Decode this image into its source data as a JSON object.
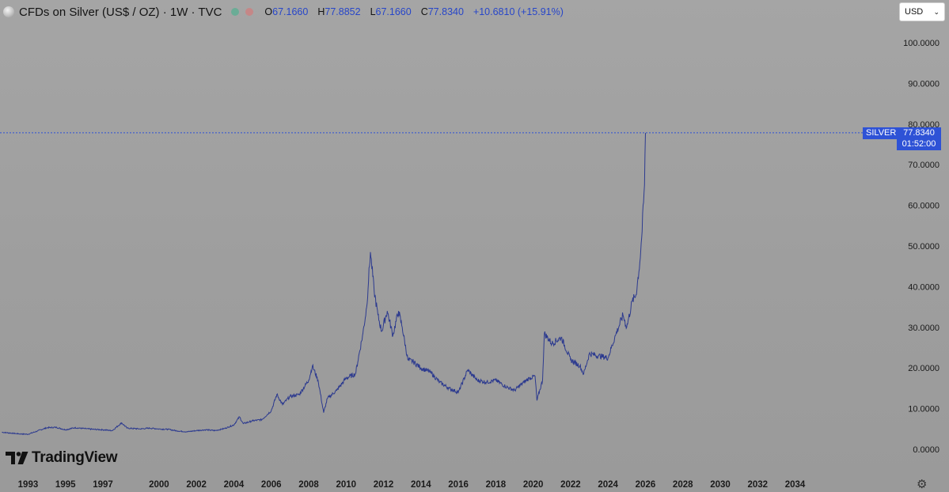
{
  "header": {
    "title": "CFDs on Silver (US$ / OZ) · 1W · TVC",
    "open_key": "O",
    "open": "67.1660",
    "high_key": "H",
    "high": "77.8852",
    "low_key": "L",
    "low": "67.1660",
    "close_key": "C",
    "close": "77.8340",
    "change": "+10.6810 (+15.91%)"
  },
  "currency": {
    "selected": "USD"
  },
  "price_label": {
    "symbol": "SILVER",
    "last": "77.8340",
    "countdown": "01:52:00"
  },
  "brand": "TradingView",
  "colors": {
    "line": "#2c3a8f",
    "accent": "#2e52d6",
    "background": "#a0a0a0"
  },
  "chart_data": {
    "type": "line",
    "title": "CFDs on Silver (US$ / OZ) · 1W · TVC",
    "xlabel": "",
    "ylabel": "",
    "ylim": [
      0,
      100
    ],
    "xlim": [
      1991.5,
      2035.5
    ],
    "grid": false,
    "y_ticks": [
      "0.0000",
      "10.0000",
      "20.0000",
      "30.0000",
      "40.0000",
      "50.0000",
      "60.0000",
      "70.0000",
      "80.0000",
      "90.0000",
      "100.0000"
    ],
    "x_ticks": [
      "1993",
      "1995",
      "1997",
      "2000",
      "2002",
      "2004",
      "2006",
      "2008",
      "2010",
      "2012",
      "2014",
      "2016",
      "2018",
      "2020",
      "2022",
      "2024",
      "2026",
      "2028",
      "2030",
      "2032",
      "2034"
    ],
    "series": [
      {
        "name": "SILVER",
        "x": [
          1991.6,
          1992.5,
          1993.0,
          1993.5,
          1994.0,
          1994.5,
          1995.0,
          1995.5,
          1996.0,
          1996.5,
          1997.0,
          1997.5,
          1998.0,
          1998.3,
          1999.0,
          1999.5,
          2000.0,
          2000.5,
          2001.0,
          2001.5,
          2002.0,
          2002.5,
          2003.0,
          2003.5,
          2004.0,
          2004.3,
          2004.5,
          2005.0,
          2005.5,
          2006.0,
          2006.3,
          2006.6,
          2007.0,
          2007.5,
          2008.0,
          2008.2,
          2008.5,
          2008.8,
          2009.0,
          2009.5,
          2010.0,
          2010.5,
          2010.9,
          2011.1,
          2011.3,
          2011.5,
          2011.7,
          2011.9,
          2012.2,
          2012.5,
          2012.8,
          2013.0,
          2013.3,
          2013.6,
          2014.0,
          2014.5,
          2015.0,
          2015.5,
          2016.0,
          2016.5,
          2017.0,
          2017.5,
          2018.0,
          2018.5,
          2019.0,
          2019.5,
          2019.8,
          2020.1,
          2020.2,
          2020.5,
          2020.6,
          2021.0,
          2021.5,
          2022.0,
          2022.5,
          2022.7,
          2023.0,
          2023.5,
          2024.0,
          2024.4,
          2024.8,
          2025.0,
          2025.3,
          2025.5,
          2025.7,
          2025.8,
          2025.95,
          2026.0
        ],
        "values": [
          4.2,
          3.8,
          3.7,
          4.5,
          5.3,
          5.4,
          4.8,
          5.3,
          5.1,
          4.9,
          4.8,
          4.6,
          6.5,
          5.2,
          5.0,
          5.2,
          5.0,
          4.9,
          4.5,
          4.3,
          4.6,
          4.8,
          4.6,
          5.1,
          6.0,
          8.0,
          6.3,
          7.0,
          7.3,
          9.5,
          13.5,
          11.0,
          13.0,
          13.5,
          17.0,
          20.5,
          17.0,
          9.0,
          12.5,
          14.5,
          17.5,
          18.5,
          28.5,
          35.0,
          48.5,
          39.0,
          33.0,
          29.0,
          34.0,
          28.0,
          34.0,
          30.0,
          22.0,
          21.5,
          20.0,
          19.0,
          16.5,
          15.0,
          14.0,
          19.5,
          17.0,
          16.5,
          17.0,
          15.5,
          14.5,
          16.5,
          17.5,
          18.0,
          12.0,
          17.0,
          28.5,
          26.0,
          27.5,
          22.0,
          20.5,
          18.5,
          23.5,
          23.0,
          22.5,
          28.0,
          33.0,
          30.0,
          36.5,
          38.0,
          46.0,
          52.0,
          65.0,
          77.8
        ]
      }
    ],
    "last_value": 77.834
  }
}
